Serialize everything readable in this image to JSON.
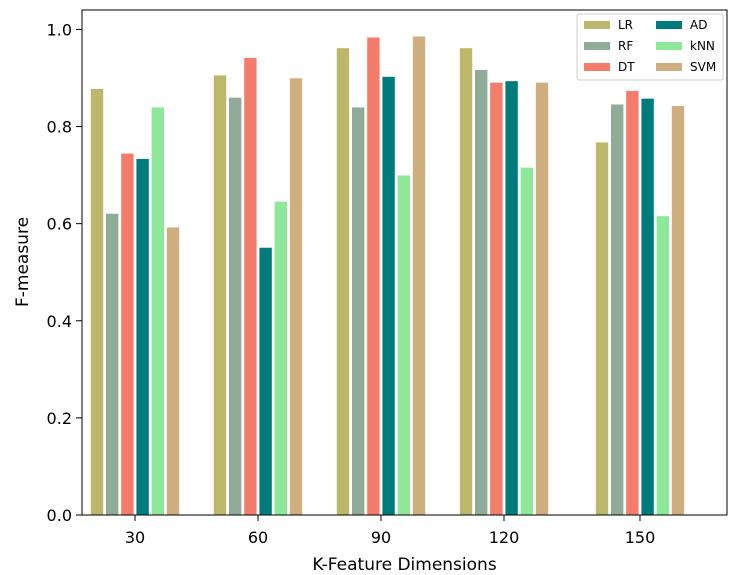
{
  "chart_data": {
    "type": "bar",
    "title": "",
    "xlabel": "K-Feature Dimensions",
    "ylabel": "F-measure",
    "categories": [
      "30",
      "60",
      "90",
      "120",
      "150"
    ],
    "ylim": [
      0,
      1.04
    ],
    "yticks": [
      "0.0",
      "0.2",
      "0.4",
      "0.6",
      "0.8",
      "1.0"
    ],
    "grid": false,
    "legend_position": "top-right",
    "series": [
      {
        "name": "LR",
        "color": "#bdb76b",
        "values": [
          0.878,
          0.906,
          0.962,
          0.962,
          0.768
        ]
      },
      {
        "name": "RF",
        "color": "#8fac98",
        "values": [
          0.621,
          0.86,
          0.84,
          0.917,
          0.846
        ]
      },
      {
        "name": "DT",
        "color": "#f47c6a",
        "values": [
          0.745,
          0.942,
          0.984,
          0.891,
          0.874
        ]
      },
      {
        "name": "AD",
        "color": "#007b7b",
        "values": [
          0.734,
          0.551,
          0.903,
          0.894,
          0.858
        ]
      },
      {
        "name": "kNN",
        "color": "#8ee89a",
        "values": [
          0.84,
          0.646,
          0.7,
          0.716,
          0.616
        ]
      },
      {
        "name": "SVM",
        "color": "#cfae80",
        "values": [
          0.593,
          0.9,
          0.986,
          0.891,
          0.843
        ]
      }
    ]
  }
}
